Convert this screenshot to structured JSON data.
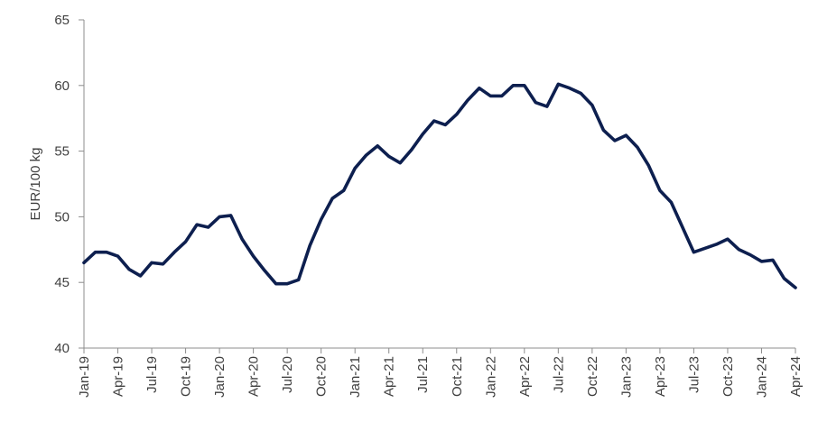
{
  "chart_data": {
    "type": "line",
    "title": "",
    "xlabel": "",
    "ylabel": "EUR/100 kg",
    "ylim": [
      40,
      65
    ],
    "yticks": [
      40,
      45,
      50,
      55,
      60,
      65
    ],
    "grid": false,
    "legend": "none",
    "x_tick_labels": [
      "Jan-19",
      "Apr-19",
      "Jul-19",
      "Oct-19",
      "Jan-20",
      "Apr-20",
      "Jul-20",
      "Oct-20",
      "Jan-21",
      "Apr-21",
      "Jul-21",
      "Oct-21",
      "Jan-22",
      "Apr-22",
      "Jul-22",
      "Oct-22",
      "Jan-23",
      "Apr-23",
      "Jul-23",
      "Oct-23",
      "Jan-24",
      "Apr-24"
    ],
    "series": [
      {
        "color": "#0d1f4f",
        "points": [
          [
            "Jan-19",
            46.5
          ],
          [
            "Feb-19",
            47.3
          ],
          [
            "Mar-19",
            47.3
          ],
          [
            "Apr-19",
            47.0
          ],
          [
            "May-19",
            46.0
          ],
          [
            "Jun-19",
            45.5
          ],
          [
            "Jul-19",
            46.5
          ],
          [
            "Aug-19",
            46.4
          ],
          [
            "Sep-19",
            47.3
          ],
          [
            "Oct-19",
            48.1
          ],
          [
            "Nov-19",
            49.4
          ],
          [
            "Dec-19",
            49.2
          ],
          [
            "Dec-19b",
            50.0
          ],
          [
            "Jan-20",
            50.1
          ],
          [
            "Feb-20",
            48.3
          ],
          [
            "Mar-20",
            47.0
          ],
          [
            "Apr-20",
            45.9
          ],
          [
            "May-20",
            44.9
          ],
          [
            "Jun-20",
            44.9
          ],
          [
            "Jul-20",
            45.2
          ],
          [
            "Aug-20",
            47.8
          ],
          [
            "Sep-20",
            49.8
          ],
          [
            "Oct-20",
            51.4
          ],
          [
            "Nov-20",
            52.0
          ],
          [
            "Dec-20",
            53.7
          ],
          [
            "Jan-21",
            54.7
          ],
          [
            "Feb-21",
            55.4
          ],
          [
            "Mar-21",
            54.6
          ],
          [
            "Apr-21",
            54.1
          ],
          [
            "May-21",
            55.1
          ],
          [
            "Jun-21",
            56.3
          ],
          [
            "Jul-21",
            57.3
          ],
          [
            "Aug-21",
            57.0
          ],
          [
            "Sep-21",
            57.8
          ],
          [
            "Sep-21b",
            58.9
          ],
          [
            "Oct-21",
            59.8
          ],
          [
            "Nov-21",
            59.2
          ],
          [
            "Dec-21",
            59.2
          ],
          [
            "Jan-22",
            60.0
          ],
          [
            "Feb-22",
            60.0
          ],
          [
            "Mar-22",
            58.7
          ],
          [
            "Apr-22",
            58.4
          ],
          [
            "May-22",
            60.1
          ],
          [
            "Jun-22",
            59.8
          ],
          [
            "Jul-22",
            59.4
          ],
          [
            "Aug-22",
            58.5
          ],
          [
            "Sep-22",
            56.6
          ],
          [
            "Oct-22",
            55.8
          ],
          [
            "Nov-22",
            56.2
          ],
          [
            "Dec-22",
            55.3
          ],
          [
            "Jan-23",
            53.9
          ],
          [
            "Feb-23",
            52.0
          ],
          [
            "Mar-23",
            51.1
          ],
          [
            "Apr-23",
            49.2
          ],
          [
            "May-23",
            47.3
          ],
          [
            "Jun-23",
            47.6
          ],
          [
            "Jul-23",
            47.9
          ],
          [
            "Aug-23",
            48.3
          ],
          [
            "Sep-23",
            47.5
          ],
          [
            "Oct-23",
            47.1
          ],
          [
            "Nov-23",
            46.6
          ],
          [
            "Dec-23",
            46.7
          ],
          [
            "Jan-24",
            45.3
          ],
          [
            "Feb-24",
            44.6
          ]
        ]
      }
    ]
  }
}
